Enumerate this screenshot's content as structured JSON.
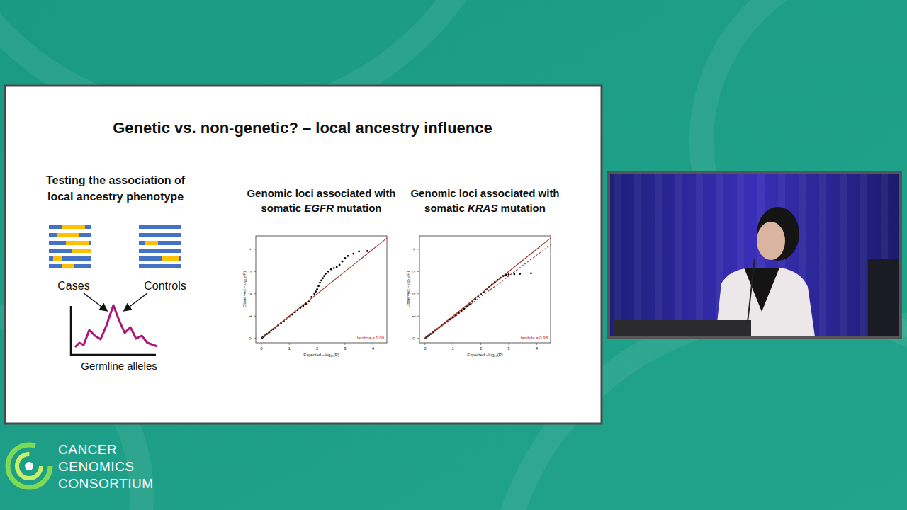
{
  "slide": {
    "title": "Genetic vs. non-genetic? – local ancestry influence",
    "schematic": {
      "heading": "Testing the association of local ancestry phenotype",
      "groups": [
        "Cases",
        "Controls"
      ],
      "axis_label": "Germline alleles"
    }
  },
  "chart_data": [
    {
      "type": "scatter",
      "title": "Genomic loci associated with somatic EGFR mutation",
      "x_label": "Expected −log₁₀(P)",
      "y_label": "Observed −log₁₀(P)",
      "xlim": [
        -0.2,
        4.5
      ],
      "ylim": [
        -0.2,
        4.6
      ],
      "xticks": [
        0,
        1,
        2,
        3,
        4
      ],
      "yticks": [
        0,
        1,
        2,
        3,
        4
      ],
      "annotation": "lambda = 1.00",
      "series": [
        {
          "type": "scatter",
          "color": "#000000",
          "marker": "circle",
          "x": [
            0.02,
            0.05,
            0.1,
            0.15,
            0.2,
            0.28,
            0.35,
            0.42,
            0.5,
            0.6,
            0.7,
            0.8,
            0.9,
            1.0,
            1.1,
            1.2,
            1.3,
            1.4,
            1.5,
            1.6,
            1.7,
            1.8,
            1.9,
            1.95,
            2.0,
            2.05,
            2.1,
            2.15,
            2.2,
            2.25,
            2.3,
            2.4,
            2.5,
            2.6,
            2.7,
            2.8,
            2.9,
            3.0,
            3.1,
            3.3,
            3.5,
            3.8
          ],
          "values": [
            0.02,
            0.05,
            0.1,
            0.15,
            0.2,
            0.27,
            0.34,
            0.41,
            0.49,
            0.58,
            0.68,
            0.77,
            0.87,
            0.97,
            1.07,
            1.17,
            1.27,
            1.37,
            1.45,
            1.55,
            1.65,
            1.85,
            2.0,
            2.1,
            2.2,
            2.35,
            2.5,
            2.6,
            2.7,
            2.8,
            2.9,
            3.0,
            3.1,
            3.15,
            3.2,
            3.3,
            3.45,
            3.6,
            3.7,
            3.8,
            3.9,
            3.92
          ]
        },
        {
          "type": "line",
          "color": "#a0302a",
          "line_style": "solid",
          "x": [
            0,
            4.5
          ],
          "values": [
            0,
            4.5
          ]
        }
      ]
    },
    {
      "type": "scatter",
      "title": "Genomic loci associated with somatic KRAS mutation",
      "x_label": "Expected −log₁₀(P)",
      "y_label": "Observed −log₁₀(P)",
      "xlim": [
        -0.2,
        4.5
      ],
      "ylim": [
        -0.2,
        4.6
      ],
      "xticks": [
        0,
        1,
        2,
        3,
        4
      ],
      "yticks": [
        0,
        1,
        2,
        3,
        4
      ],
      "annotation": "lambda = 0.98",
      "series": [
        {
          "type": "scatter",
          "color": "#000000",
          "marker": "circle",
          "x": [
            0.02,
            0.05,
            0.1,
            0.15,
            0.2,
            0.28,
            0.35,
            0.42,
            0.5,
            0.6,
            0.7,
            0.8,
            0.9,
            1.0,
            1.1,
            1.2,
            1.3,
            1.4,
            1.5,
            1.6,
            1.7,
            1.8,
            1.9,
            2.0,
            2.1,
            2.2,
            2.3,
            2.4,
            2.5,
            2.6,
            2.7,
            2.8,
            2.9,
            3.0,
            3.2,
            3.4,
            3.8
          ],
          "values": [
            0.02,
            0.05,
            0.1,
            0.15,
            0.2,
            0.27,
            0.34,
            0.41,
            0.49,
            0.59,
            0.68,
            0.76,
            0.85,
            0.94,
            1.03,
            1.13,
            1.23,
            1.33,
            1.43,
            1.53,
            1.64,
            1.76,
            1.87,
            1.98,
            2.08,
            2.19,
            2.3,
            2.41,
            2.52,
            2.62,
            2.72,
            2.8,
            2.85,
            2.87,
            2.88,
            2.9,
            2.92
          ]
        },
        {
          "type": "line",
          "color": "#a0302a",
          "line_style": "solid",
          "x": [
            0,
            4.5
          ],
          "values": [
            0,
            4.5
          ]
        },
        {
          "type": "line",
          "color": "#a0302a",
          "line_style": "dashed",
          "x": [
            0,
            4.5
          ],
          "values": [
            0,
            4.2
          ]
        }
      ]
    }
  ],
  "branding": {
    "lines": [
      "CANCER",
      "GENOMICS",
      "CONSORTIUM"
    ]
  }
}
